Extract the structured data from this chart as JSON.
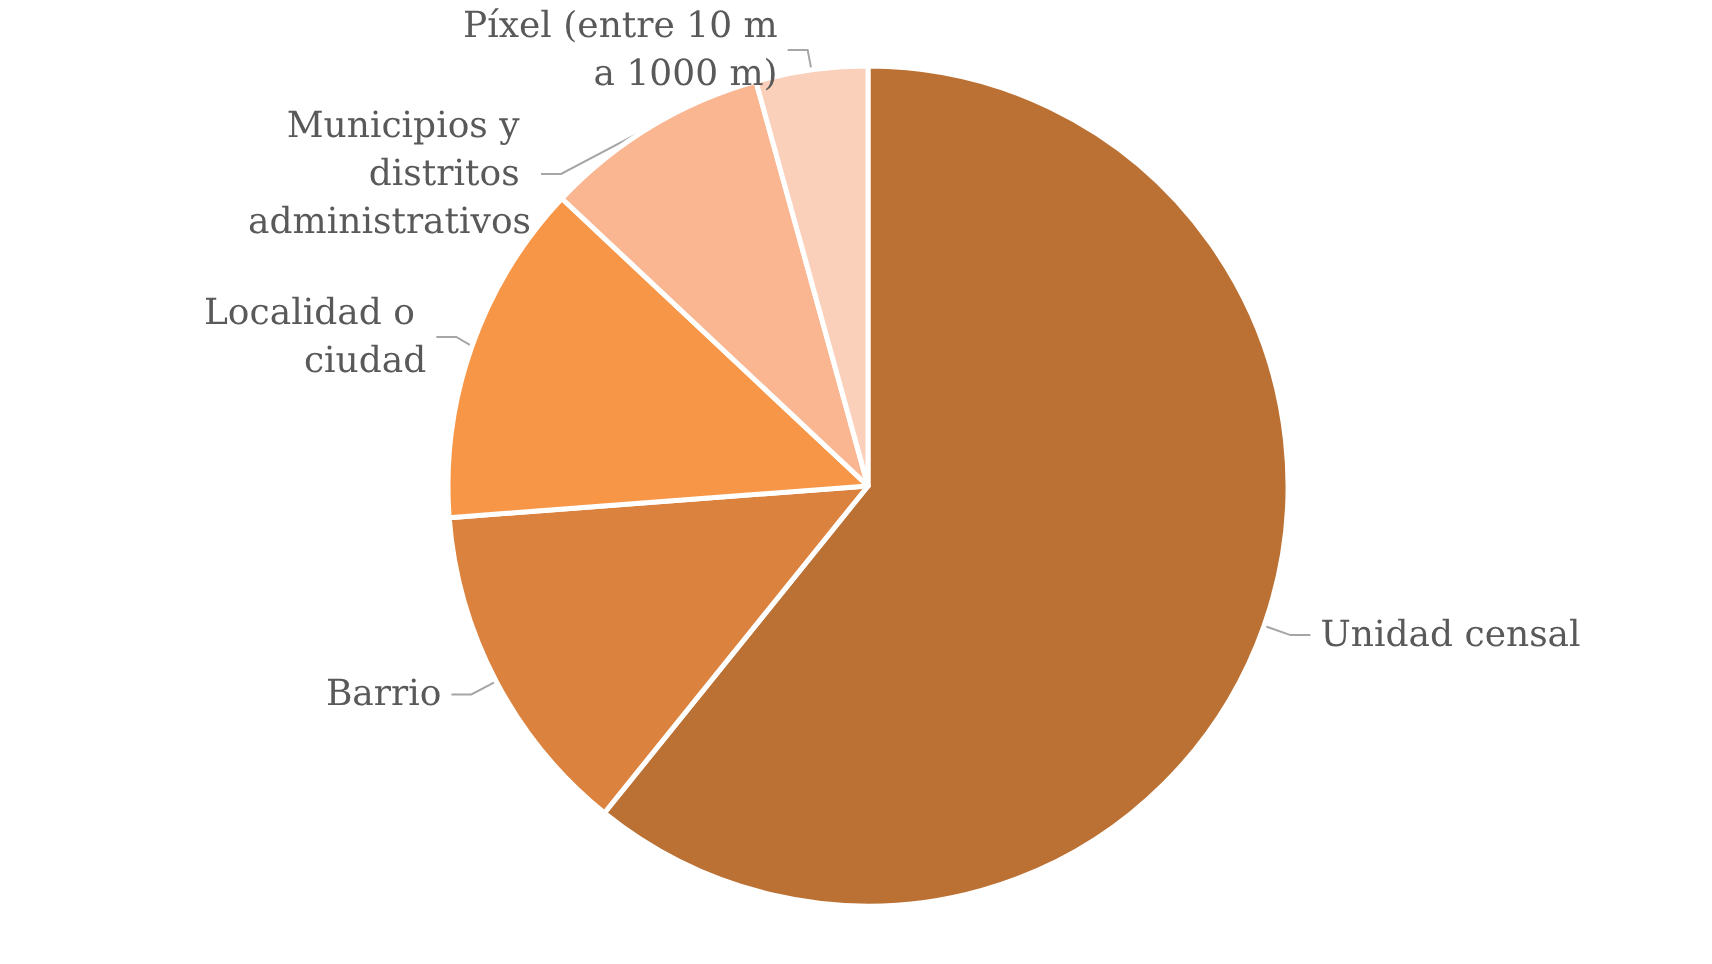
{
  "chart_data": {
    "type": "pie",
    "categories": [
      "Unidad censal",
      "Barrio",
      "Localidad o ciudad",
      "Municipios y distritos administrativos",
      "Píxel (entre 10 m a 1000 m)"
    ],
    "values": [
      60.8,
      13.0,
      13.2,
      8.7,
      4.3
    ],
    "colors": [
      "#bb7133",
      "#db823f",
      "#f79646",
      "#f9b691",
      "#fbd0ba"
    ],
    "legend": false
  }
}
